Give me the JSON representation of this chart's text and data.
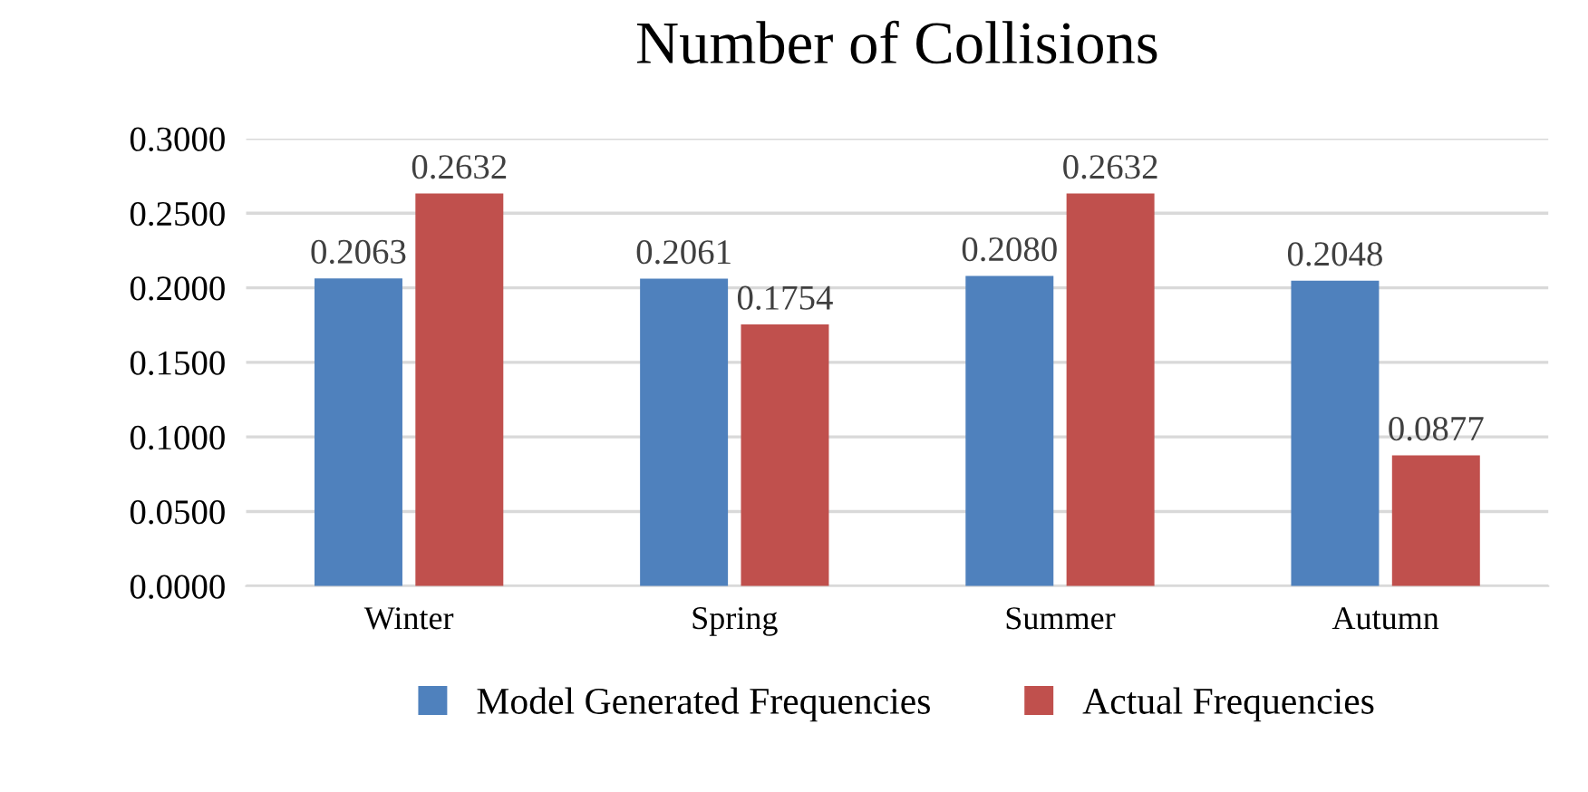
{
  "chart_data": {
    "type": "bar",
    "title": "Number of Collisions",
    "categories": [
      "Winter",
      "Spring",
      "Summer",
      "Autumn"
    ],
    "series": [
      {
        "name": "Model Generated Frequencies",
        "color": "#4f81bd",
        "values": [
          0.2063,
          0.2061,
          0.208,
          0.2048
        ],
        "value_labels": [
          "0.2063",
          "0.2061",
          "0.2080",
          "0.2048"
        ]
      },
      {
        "name": "Actual Frequencies",
        "color": "#c0504d",
        "values": [
          0.2632,
          0.1754,
          0.2632,
          0.0877
        ],
        "value_labels": [
          "0.2632",
          "0.1754",
          "0.2632",
          "0.0877"
        ]
      }
    ],
    "ylim": [
      0,
      0.3
    ],
    "yticks": [
      {
        "value": 0,
        "label": "0.0000"
      },
      {
        "value": 0.05,
        "label": "0.0500"
      },
      {
        "value": 0.1,
        "label": "0.1000"
      },
      {
        "value": 0.15,
        "label": "0.1500"
      },
      {
        "value": 0.2,
        "label": "0.2000"
      },
      {
        "value": 0.25,
        "label": "0.2500"
      },
      {
        "value": 0.3,
        "label": "0.3000"
      }
    ],
    "grid": "y",
    "legend": "bottom"
  }
}
